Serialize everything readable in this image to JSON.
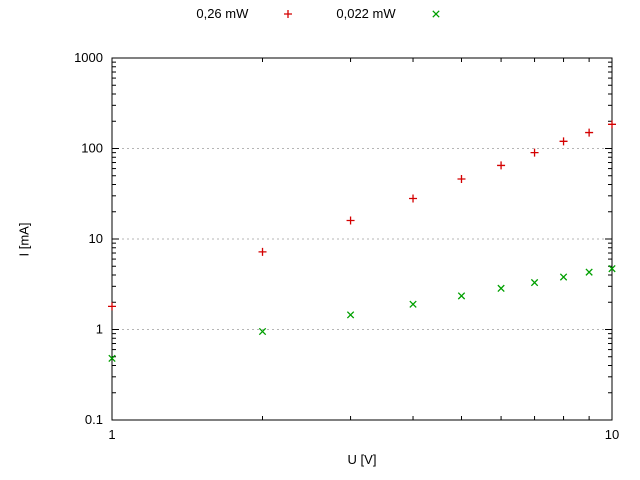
{
  "figure": {
    "background": "#ffffff"
  },
  "chart_data": {
    "type": "scatter",
    "title": "",
    "xlabel": "U [V]",
    "ylabel": "I [mA]",
    "xscale": "log",
    "yscale": "log",
    "xlim": [
      1,
      10
    ],
    "ylim": [
      0.1,
      1000
    ],
    "x_ticks": [
      1,
      10
    ],
    "x_tick_labels": [
      "1",
      "10"
    ],
    "y_ticks": [
      0.1,
      1,
      10,
      100,
      1000
    ],
    "y_tick_labels": [
      "0.1",
      "1",
      "10",
      "100",
      "1000"
    ],
    "grid": {
      "y_major": true,
      "style": "dashed",
      "color": "#b5b5b5"
    },
    "legend_position": "top-center",
    "axis_color": "#000000",
    "x": [
      1,
      2,
      3,
      4,
      5,
      6,
      7,
      8,
      9,
      10
    ],
    "series": [
      {
        "name": "0,26 mW",
        "marker": "plus",
        "color": "#d40000",
        "values": [
          1.8,
          7.2,
          16,
          28,
          46,
          65,
          90,
          120,
          150,
          185
        ]
      },
      {
        "name": "0,022 mW",
        "marker": "cross",
        "color": "#00a000",
        "values": [
          0.48,
          0.95,
          1.45,
          1.9,
          2.35,
          2.85,
          3.3,
          3.8,
          4.3,
          4.7
        ]
      }
    ]
  }
}
